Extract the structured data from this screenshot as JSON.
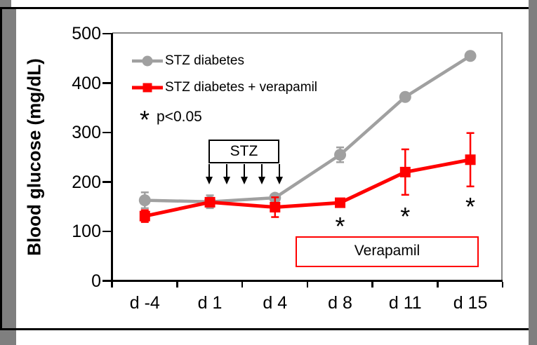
{
  "chart_data": {
    "type": "line",
    "title": "",
    "ylabel": "Blood glucose (mg/dL)",
    "xlabel": "",
    "ylim": [
      0,
      500
    ],
    "yticks": [
      0,
      100,
      200,
      300,
      400,
      500
    ],
    "grid": false,
    "legend_position": "top-left-inside",
    "categories": [
      "d -4",
      "d 1",
      "d 4",
      "d 8",
      "d 11",
      "d 15"
    ],
    "series": [
      {
        "name": "STZ diabetes",
        "color": "#a0a0a0",
        "marker": "circle",
        "values": [
          163,
          160,
          168,
          255,
          372,
          455
        ],
        "errors": [
          16,
          13,
          0,
          15,
          0,
          0
        ]
      },
      {
        "name": "STZ diabetes + verapamil",
        "color": "#ff0000",
        "marker": "square",
        "values": [
          131,
          159,
          149,
          158,
          220,
          245
        ],
        "errors": [
          12,
          0,
          20,
          0,
          46,
          54
        ]
      }
    ],
    "significance_note": {
      "symbol": "*",
      "label": "p<0.05"
    },
    "significance_marks": [
      {
        "category": "d 8",
        "value": 117,
        "symbol": "*"
      },
      {
        "category": "d 11",
        "value": 137,
        "symbol": "*"
      },
      {
        "category": "d 15",
        "value": 157,
        "symbol": "*"
      }
    ],
    "stz_treatment_box": {
      "label": "STZ",
      "arrow_count": 5,
      "span_categories": [
        "d 1",
        "d 4"
      ]
    },
    "verapamil_treatment_box": {
      "label": "Verapamil",
      "span_categories": [
        "d 8",
        "d 15"
      ]
    }
  },
  "colors": {
    "series_control": "#a0a0a0",
    "series_treatment": "#ff0000",
    "frame_shadow": "#7f7f7f",
    "plot_border": "#898989"
  }
}
